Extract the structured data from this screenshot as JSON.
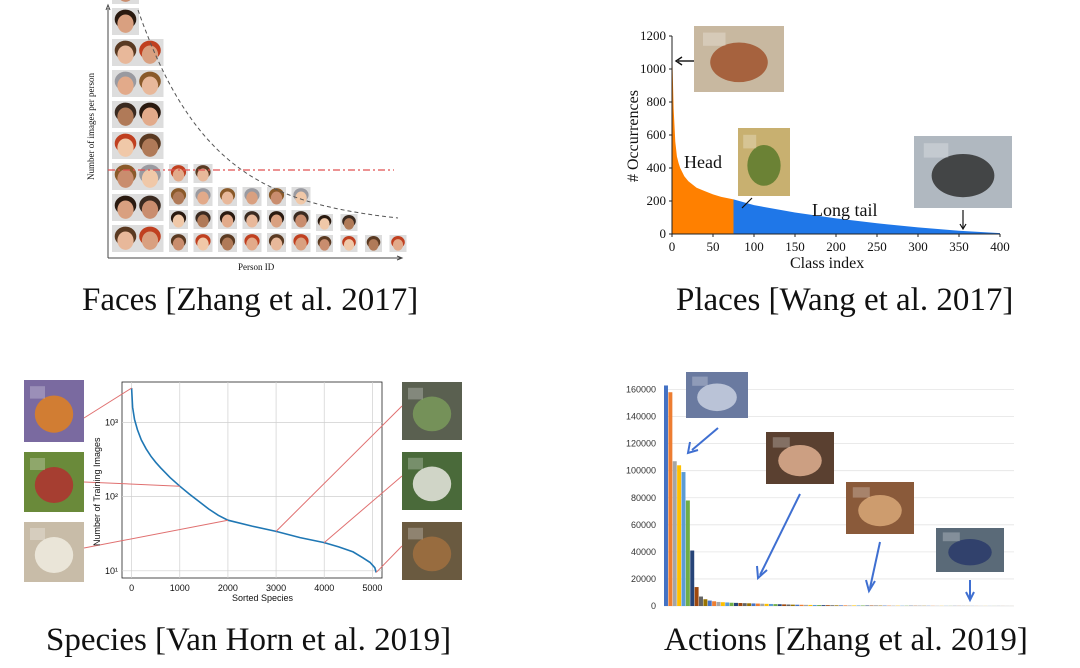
{
  "chart_data": [
    {
      "type": "bar",
      "caption": "Faces [Zhang et al. 2017]",
      "xlabel": "Person ID",
      "ylabel": "Number of images per person",
      "columns": [
        {
          "faces": 9
        },
        {
          "faces": 7
        },
        {
          "faces": 4
        },
        {
          "faces": 4
        },
        {
          "faces": 3
        },
        {
          "faces": 3
        },
        {
          "faces": 3
        },
        {
          "faces": 3
        },
        {
          "faces": 2
        },
        {
          "faces": 2
        },
        {
          "faces": 1
        },
        {
          "faces": 1
        }
      ],
      "colors": {
        "curve": "#555555",
        "threshold": "#e05050"
      }
    },
    {
      "type": "area",
      "caption": "Places [Wang et al. 2017]",
      "xlabel": "Class index",
      "ylabel": "# Occurrences",
      "xticks": [
        0,
        50,
        100,
        150,
        200,
        250,
        300,
        350,
        400
      ],
      "yticks": [
        0,
        200,
        400,
        600,
        800,
        1000,
        1200
      ],
      "xlim": [
        0,
        400
      ],
      "ylim": [
        0,
        1200
      ],
      "head_end": 75,
      "curve": {
        "x": [
          0,
          2,
          4,
          6,
          8,
          10,
          15,
          20,
          30,
          40,
          50,
          60,
          75,
          100,
          150,
          200,
          250,
          300,
          350,
          400
        ],
        "y": [
          1150,
          760,
          560,
          470,
          430,
          400,
          350,
          320,
          280,
          260,
          240,
          225,
          210,
          175,
          130,
          95,
          65,
          40,
          20,
          5
        ]
      },
      "annotations": [
        "Head",
        "Long tail"
      ],
      "colors": {
        "head": "#ff8000",
        "tail": "#1f77e8"
      }
    },
    {
      "type": "line",
      "caption": "Species [Van Horn et al. 2019]",
      "xlabel": "Sorted Species",
      "ylabel": "Number of Training Images",
      "xticks": [
        "0",
        "1000",
        "2000",
        "3000",
        "4000",
        "5000"
      ],
      "yticks": [
        "10¹",
        "10²",
        "10³"
      ],
      "log_y": true,
      "xlim": [
        -200,
        5200
      ],
      "ylim": [
        8,
        3500
      ],
      "grid": true,
      "series": [
        {
          "x": [
            0,
            20,
            60,
            120,
            200,
            300,
            400,
            500,
            600,
            800,
            1000,
            1200,
            1400,
            1600,
            1800,
            2000,
            2500,
            3000,
            3500,
            4000,
            4300,
            4600,
            4800,
            4950,
            5050,
            5080
          ],
          "y": [
            2900,
            1600,
            1100,
            800,
            580,
            440,
            350,
            290,
            245,
            180,
            138,
            108,
            86,
            68,
            56,
            48,
            40,
            34,
            28,
            24,
            21,
            18,
            15,
            13,
            11,
            9.5
          ]
        }
      ],
      "colors": {
        "line": "#1f77b4",
        "connector": "#e07070"
      }
    },
    {
      "type": "bar",
      "caption": "Actions [Zhang et al. 2019]",
      "yticks": [
        "0",
        "20000",
        "40000",
        "60000",
        "80000",
        "100000",
        "120000",
        "140000",
        "160000"
      ],
      "ylim": [
        0,
        170000
      ],
      "grid": true,
      "values": [
        163000,
        158000,
        107000,
        104000,
        99000,
        78000,
        41000,
        14000,
        7000,
        5000,
        4000,
        3500,
        3000,
        2800,
        2600,
        2400,
        2300,
        2200,
        2100,
        2000,
        1900,
        1800,
        1700,
        1600,
        1500,
        1400,
        1300,
        1200,
        1100,
        1000,
        950,
        900,
        850,
        800,
        750,
        700,
        650,
        600,
        550,
        500,
        480,
        460,
        440,
        420,
        400,
        380,
        360,
        340,
        320,
        300,
        280,
        260,
        240,
        220,
        200,
        190,
        180,
        170,
        160,
        150,
        140,
        130,
        120,
        110,
        100,
        95,
        90,
        85,
        80,
        75,
        70,
        65,
        60,
        55,
        50,
        45,
        40,
        35,
        30,
        25
      ],
      "colors": {
        "palette": [
          "#4472c4",
          "#ed7d31",
          "#a5a5a5",
          "#ffc000",
          "#5b9bd5",
          "#70ad47",
          "#264478",
          "#9e480e",
          "#636363",
          "#997300"
        ],
        "arrow": "#3f6fd1"
      }
    }
  ]
}
